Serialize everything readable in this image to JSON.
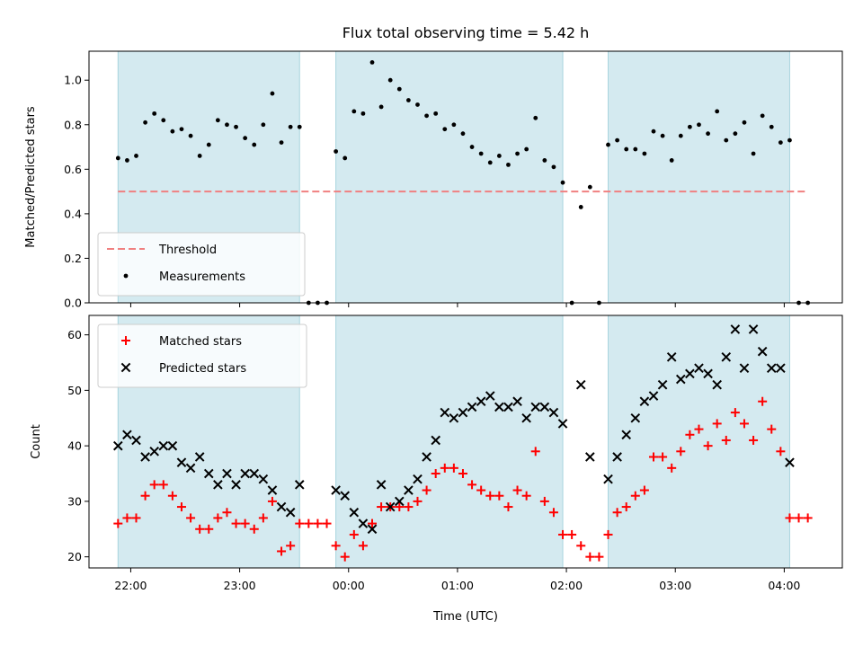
{
  "chart_data": {
    "title": "Flux total observing time = 5.42 h",
    "xlabel": "Time (UTC)",
    "x_ticks": [
      "22:00",
      "23:00",
      "00:00",
      "01:00",
      "02:00",
      "03:00",
      "04:00"
    ],
    "x_range": [
      "21:37",
      "04:32"
    ],
    "shaded_intervals": [
      [
        "21:53",
        "23:33"
      ],
      [
        "23:53",
        "01:58"
      ],
      [
        "02:23",
        "04:03"
      ]
    ],
    "colors": {
      "shade": "#d4eaf0",
      "shade_edge": "#a8d4de",
      "threshold": "#f08080",
      "matched": "#ff0000",
      "predicted": "#000000",
      "points": "#000000"
    },
    "panels": [
      {
        "type": "scatter",
        "ylabel": "Matched/Predicted stars",
        "ylim": [
          0,
          1.13
        ],
        "yticks": [
          0.0,
          0.2,
          0.4,
          0.6,
          0.8,
          1.0
        ],
        "threshold": {
          "name": "Threshold",
          "value": 0.5,
          "x_range": [
            "21:53",
            "04:13"
          ]
        },
        "legend": {
          "position": "lower-left",
          "entries": [
            "Threshold",
            "Measurements"
          ]
        },
        "series": [
          {
            "name": "Measurements",
            "marker": "dot",
            "points": [
              [
                "21:53",
                0.65
              ],
              [
                "21:58",
                0.64
              ],
              [
                "22:03",
                0.66
              ],
              [
                "22:08",
                0.81
              ],
              [
                "22:13",
                0.85
              ],
              [
                "22:18",
                0.82
              ],
              [
                "22:23",
                0.77
              ],
              [
                "22:28",
                0.78
              ],
              [
                "22:33",
                0.75
              ],
              [
                "22:38",
                0.66
              ],
              [
                "22:43",
                0.71
              ],
              [
                "22:48",
                0.82
              ],
              [
                "22:53",
                0.8
              ],
              [
                "22:58",
                0.79
              ],
              [
                "23:03",
                0.74
              ],
              [
                "23:08",
                0.71
              ],
              [
                "23:13",
                0.8
              ],
              [
                "23:18",
                0.94
              ],
              [
                "23:23",
                0.72
              ],
              [
                "23:28",
                0.79
              ],
              [
                "23:33",
                0.79
              ],
              [
                "23:38",
                0.0
              ],
              [
                "23:43",
                0.0
              ],
              [
                "23:48",
                0.0
              ],
              [
                "23:53",
                0.68
              ],
              [
                "23:58",
                0.65
              ],
              [
                "00:03",
                0.86
              ],
              [
                "00:08",
                0.85
              ],
              [
                "00:13",
                1.08
              ],
              [
                "00:18",
                0.88
              ],
              [
                "00:23",
                1.0
              ],
              [
                "00:28",
                0.96
              ],
              [
                "00:33",
                0.91
              ],
              [
                "00:38",
                0.89
              ],
              [
                "00:43",
                0.84
              ],
              [
                "00:48",
                0.85
              ],
              [
                "00:53",
                0.78
              ],
              [
                "00:58",
                0.8
              ],
              [
                "01:03",
                0.76
              ],
              [
                "01:08",
                0.7
              ],
              [
                "01:13",
                0.67
              ],
              [
                "01:18",
                0.63
              ],
              [
                "01:23",
                0.66
              ],
              [
                "01:28",
                0.62
              ],
              [
                "01:33",
                0.67
              ],
              [
                "01:38",
                0.69
              ],
              [
                "01:43",
                0.83
              ],
              [
                "01:48",
                0.64
              ],
              [
                "01:53",
                0.61
              ],
              [
                "01:58",
                0.54
              ],
              [
                "02:03",
                0.0
              ],
              [
                "02:08",
                0.43
              ],
              [
                "02:13",
                0.52
              ],
              [
                "02:18",
                0.0
              ],
              [
                "02:23",
                0.71
              ],
              [
                "02:28",
                0.73
              ],
              [
                "02:33",
                0.69
              ],
              [
                "02:38",
                0.69
              ],
              [
                "02:43",
                0.67
              ],
              [
                "02:48",
                0.77
              ],
              [
                "02:53",
                0.75
              ],
              [
                "02:58",
                0.64
              ],
              [
                "03:03",
                0.75
              ],
              [
                "03:08",
                0.79
              ],
              [
                "03:13",
                0.8
              ],
              [
                "03:18",
                0.76
              ],
              [
                "03:23",
                0.86
              ],
              [
                "03:28",
                0.73
              ],
              [
                "03:33",
                0.76
              ],
              [
                "03:38",
                0.81
              ],
              [
                "03:43",
                0.67
              ],
              [
                "03:48",
                0.84
              ],
              [
                "03:53",
                0.79
              ],
              [
                "03:58",
                0.72
              ],
              [
                "04:03",
                0.73
              ],
              [
                "04:08",
                0.0
              ],
              [
                "04:13",
                0.0
              ]
            ]
          }
        ]
      },
      {
        "type": "scatter",
        "ylabel": "Count",
        "ylim": [
          18,
          63.5
        ],
        "yticks": [
          20,
          30,
          40,
          50,
          60
        ],
        "legend": {
          "position": "upper-left",
          "entries": [
            "Matched stars",
            "Predicted stars"
          ]
        },
        "series": [
          {
            "name": "Matched stars",
            "marker": "plus",
            "points": [
              [
                "21:53",
                26
              ],
              [
                "21:58",
                27
              ],
              [
                "22:03",
                27
              ],
              [
                "22:08",
                31
              ],
              [
                "22:13",
                33
              ],
              [
                "22:18",
                33
              ],
              [
                "22:23",
                31
              ],
              [
                "22:28",
                29
              ],
              [
                "22:33",
                27
              ],
              [
                "22:38",
                25
              ],
              [
                "22:43",
                25
              ],
              [
                "22:48",
                27
              ],
              [
                "22:53",
                28
              ],
              [
                "22:58",
                26
              ],
              [
                "23:03",
                26
              ],
              [
                "23:08",
                25
              ],
              [
                "23:13",
                27
              ],
              [
                "23:18",
                30
              ],
              [
                "23:23",
                21
              ],
              [
                "23:28",
                22
              ],
              [
                "23:33",
                26
              ],
              [
                "23:38",
                26
              ],
              [
                "23:43",
                26
              ],
              [
                "23:48",
                26
              ],
              [
                "23:53",
                22
              ],
              [
                "23:58",
                20
              ],
              [
                "00:03",
                24
              ],
              [
                "00:08",
                22
              ],
              [
                "00:13",
                26
              ],
              [
                "00:18",
                29
              ],
              [
                "00:23",
                29
              ],
              [
                "00:28",
                29
              ],
              [
                "00:33",
                29
              ],
              [
                "00:38",
                30
              ],
              [
                "00:43",
                32
              ],
              [
                "00:48",
                35
              ],
              [
                "00:53",
                36
              ],
              [
                "00:58",
                36
              ],
              [
                "01:03",
                35
              ],
              [
                "01:08",
                33
              ],
              [
                "01:13",
                32
              ],
              [
                "01:18",
                31
              ],
              [
                "01:23",
                31
              ],
              [
                "01:28",
                29
              ],
              [
                "01:33",
                32
              ],
              [
                "01:38",
                31
              ],
              [
                "01:43",
                39
              ],
              [
                "01:48",
                30
              ],
              [
                "01:53",
                28
              ],
              [
                "01:58",
                24
              ],
              [
                "02:03",
                24
              ],
              [
                "02:08",
                22
              ],
              [
                "02:13",
                20
              ],
              [
                "02:18",
                20
              ],
              [
                "02:23",
                24
              ],
              [
                "02:28",
                28
              ],
              [
                "02:33",
                29
              ],
              [
                "02:38",
                31
              ],
              [
                "02:43",
                32
              ],
              [
                "02:48",
                38
              ],
              [
                "02:53",
                38
              ],
              [
                "02:58",
                36
              ],
              [
                "03:03",
                39
              ],
              [
                "03:08",
                42
              ],
              [
                "03:13",
                43
              ],
              [
                "03:18",
                40
              ],
              [
                "03:23",
                44
              ],
              [
                "03:28",
                41
              ],
              [
                "03:33",
                46
              ],
              [
                "03:38",
                44
              ],
              [
                "03:43",
                41
              ],
              [
                "03:48",
                48
              ],
              [
                "03:53",
                43
              ],
              [
                "03:58",
                39
              ],
              [
                "04:03",
                27
              ],
              [
                "04:08",
                27
              ],
              [
                "04:13",
                27
              ]
            ]
          },
          {
            "name": "Predicted stars",
            "marker": "x",
            "points": [
              [
                "21:53",
                40
              ],
              [
                "21:58",
                42
              ],
              [
                "22:03",
                41
              ],
              [
                "22:08",
                38
              ],
              [
                "22:13",
                39
              ],
              [
                "22:18",
                40
              ],
              [
                "22:23",
                40
              ],
              [
                "22:28",
                37
              ],
              [
                "22:33",
                36
              ],
              [
                "22:38",
                38
              ],
              [
                "22:43",
                35
              ],
              [
                "22:48",
                33
              ],
              [
                "22:53",
                35
              ],
              [
                "22:58",
                33
              ],
              [
                "23:03",
                35
              ],
              [
                "23:08",
                35
              ],
              [
                "23:13",
                34
              ],
              [
                "23:18",
                32
              ],
              [
                "23:23",
                29
              ],
              [
                "23:28",
                28
              ],
              [
                "23:33",
                33
              ],
              [
                "23:53",
                32
              ],
              [
                "23:58",
                31
              ],
              [
                "00:03",
                28
              ],
              [
                "00:08",
                26
              ],
              [
                "00:13",
                25
              ],
              [
                "00:18",
                33
              ],
              [
                "00:23",
                29
              ],
              [
                "00:28",
                30
              ],
              [
                "00:33",
                32
              ],
              [
                "00:38",
                34
              ],
              [
                "00:43",
                38
              ],
              [
                "00:48",
                41
              ],
              [
                "00:53",
                46
              ],
              [
                "00:58",
                45
              ],
              [
                "01:03",
                46
              ],
              [
                "01:08",
                47
              ],
              [
                "01:13",
                48
              ],
              [
                "01:18",
                49
              ],
              [
                "01:23",
                47
              ],
              [
                "01:28",
                47
              ],
              [
                "01:33",
                48
              ],
              [
                "01:38",
                45
              ],
              [
                "01:43",
                47
              ],
              [
                "01:48",
                47
              ],
              [
                "01:53",
                46
              ],
              [
                "01:58",
                44
              ],
              [
                "02:08",
                51
              ],
              [
                "02:13",
                38
              ],
              [
                "02:23",
                34
              ],
              [
                "02:28",
                38
              ],
              [
                "02:33",
                42
              ],
              [
                "02:38",
                45
              ],
              [
                "02:43",
                48
              ],
              [
                "02:48",
                49
              ],
              [
                "02:53",
                51
              ],
              [
                "02:58",
                56
              ],
              [
                "03:03",
                52
              ],
              [
                "03:08",
                53
              ],
              [
                "03:13",
                54
              ],
              [
                "03:18",
                53
              ],
              [
                "03:23",
                51
              ],
              [
                "03:28",
                56
              ],
              [
                "03:33",
                61
              ],
              [
                "03:38",
                54
              ],
              [
                "03:43",
                61
              ],
              [
                "03:48",
                57
              ],
              [
                "03:53",
                54
              ],
              [
                "03:58",
                54
              ],
              [
                "04:03",
                37
              ]
            ]
          }
        ]
      }
    ]
  }
}
